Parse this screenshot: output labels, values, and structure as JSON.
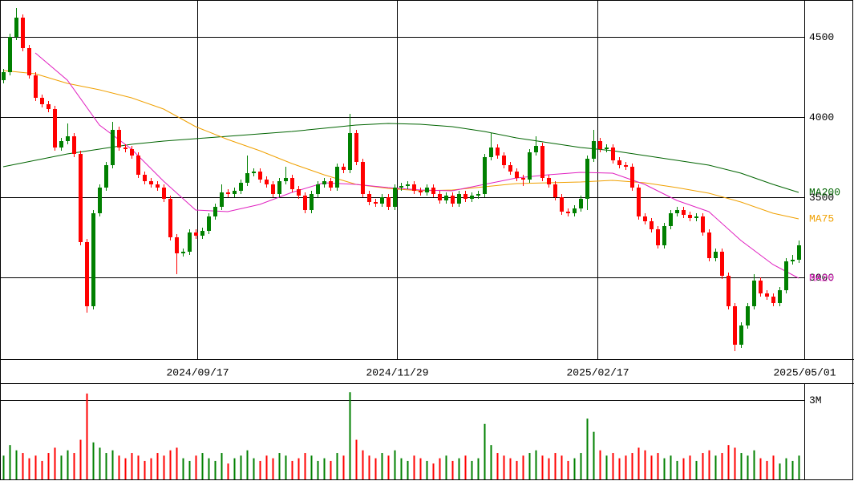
{
  "chart_data": {
    "type": "candlestick",
    "up_color": "#008000",
    "down_color": "#ff0000",
    "xlim": [
      -0.5,
      124.875
    ],
    "xticks": [
      {
        "value": 30.25,
        "label": "2024/09/17"
      },
      {
        "value": 61.375,
        "label": "2024/11/29"
      },
      {
        "value": 92.625,
        "label": "2025/02/17"
      },
      {
        "value": 124.875,
        "label": "2025/05/01"
      }
    ],
    "ylim": [
      2490,
      4730
    ],
    "yticks": [
      3000,
      3500,
      4000,
      4500
    ],
    "grid": true,
    "open": [
      4230,
      4280,
      4500,
      4620,
      4430,
      4260,
      4120,
      4080,
      4050,
      3810,
      3850,
      3880,
      3770,
      3220,
      2820,
      3400,
      3560,
      3700,
      3920,
      3810,
      3800,
      3760,
      3640,
      3600,
      3580,
      3560,
      3490,
      3250,
      3150,
      3160,
      3280,
      3260,
      3290,
      3380,
      3440,
      3530,
      3520,
      3540,
      3590,
      3650,
      3660,
      3610,
      3580,
      3520,
      3600,
      3620,
      3550,
      3510,
      3420,
      3520,
      3580,
      3600,
      3560,
      3690,
      3670,
      3900,
      3720,
      3520,
      3470,
      3460,
      3500,
      3440,
      3560,
      3570,
      3580,
      3540,
      3530,
      3560,
      3520,
      3480,
      3510,
      3460,
      3520,
      3490,
      3510,
      3520,
      3750,
      3810,
      3760,
      3700,
      3660,
      3620,
      3610,
      3780,
      3820,
      3620,
      3580,
      3500,
      3410,
      3400,
      3430,
      3490,
      3740,
      3850,
      3800,
      3810,
      3730,
      3700,
      3690,
      3560,
      3380,
      3350,
      3300,
      3200,
      3320,
      3400,
      3420,
      3390,
      3370,
      3380,
      3280,
      3120,
      3160,
      3010,
      2820,
      2580,
      2700,
      2820,
      2980,
      2900,
      2880,
      2840,
      2920,
      3100,
      3110
    ],
    "high": [
      4300,
      4520,
      4680,
      4640,
      4450,
      4280,
      4140,
      4100,
      4070,
      3870,
      3960,
      3900,
      3790,
      3240,
      3420,
      3580,
      3720,
      3970,
      3940,
      3830,
      3820,
      3780,
      3660,
      3620,
      3600,
      3580,
      3510,
      3270,
      3180,
      3300,
      3300,
      3310,
      3400,
      3460,
      3580,
      3550,
      3560,
      3610,
      3760,
      3680,
      3680,
      3630,
      3600,
      3620,
      3690,
      3640,
      3570,
      3530,
      3540,
      3600,
      3620,
      3620,
      3710,
      3710,
      4020,
      3920,
      3740,
      3540,
      3490,
      3520,
      3520,
      3580,
      3590,
      3600,
      3600,
      3560,
      3580,
      3580,
      3540,
      3530,
      3530,
      3540,
      3540,
      3530,
      3540,
      3770,
      3900,
      3830,
      3780,
      3720,
      3680,
      3640,
      3800,
      3880,
      3840,
      3640,
      3600,
      3520,
      3430,
      3450,
      3510,
      3760,
      3920,
      3870,
      3830,
      3830,
      3750,
      3720,
      3710,
      3580,
      3400,
      3370,
      3320,
      3340,
      3420,
      3440,
      3440,
      3410,
      3400,
      3400,
      3300,
      3180,
      3180,
      3030,
      2840,
      2720,
      2840,
      3020,
      3000,
      2920,
      2900,
      2940,
      3120,
      3140,
      3230
    ],
    "low": [
      4210,
      4260,
      4480,
      4410,
      4240,
      4100,
      4060,
      4030,
      3790,
      3790,
      3830,
      3750,
      3200,
      2780,
      2800,
      3380,
      3540,
      3680,
      3790,
      3780,
      3740,
      3620,
      3580,
      3560,
      3540,
      3470,
      3230,
      3020,
      3130,
      3140,
      3240,
      3240,
      3270,
      3360,
      3420,
      3500,
      3500,
      3520,
      3570,
      3630,
      3590,
      3560,
      3500,
      3500,
      3580,
      3530,
      3490,
      3400,
      3400,
      3500,
      3560,
      3540,
      3540,
      3650,
      3650,
      3700,
      3500,
      3450,
      3440,
      3440,
      3420,
      3420,
      3540,
      3550,
      3520,
      3510,
      3510,
      3500,
      3460,
      3460,
      3440,
      3440,
      3470,
      3470,
      3490,
      3500,
      3730,
      3740,
      3680,
      3640,
      3600,
      3570,
      3590,
      3760,
      3600,
      3560,
      3480,
      3390,
      3380,
      3380,
      3410,
      3420,
      3720,
      3780,
      3780,
      3710,
      3680,
      3670,
      3540,
      3360,
      3330,
      3280,
      3180,
      3180,
      3300,
      3380,
      3370,
      3350,
      3350,
      3260,
      3100,
      3100,
      2990,
      2800,
      2540,
      2560,
      2680,
      2800,
      2880,
      2860,
      2820,
      2820,
      2900,
      3080,
      3090
    ],
    "close": [
      4280,
      4500,
      4620,
      4430,
      4260,
      4120,
      4080,
      4050,
      3810,
      3850,
      3880,
      3770,
      3220,
      2820,
      3400,
      3560,
      3700,
      3920,
      3810,
      3800,
      3760,
      3640,
      3600,
      3580,
      3560,
      3490,
      3250,
      3150,
      3160,
      3280,
      3260,
      3290,
      3380,
      3440,
      3530,
      3520,
      3540,
      3590,
      3650,
      3660,
      3610,
      3580,
      3520,
      3600,
      3620,
      3550,
      3510,
      3420,
      3520,
      3580,
      3600,
      3560,
      3690,
      3670,
      3900,
      3720,
      3520,
      3470,
      3460,
      3500,
      3440,
      3560,
      3570,
      3580,
      3540,
      3530,
      3560,
      3520,
      3480,
      3510,
      3460,
      3520,
      3490,
      3510,
      3520,
      3750,
      3810,
      3760,
      3700,
      3660,
      3620,
      3610,
      3780,
      3820,
      3620,
      3580,
      3500,
      3410,
      3400,
      3430,
      3490,
      3740,
      3850,
      3800,
      3810,
      3730,
      3700,
      3690,
      3560,
      3380,
      3350,
      3300,
      3200,
      3320,
      3400,
      3420,
      3390,
      3370,
      3380,
      3280,
      3120,
      3160,
      3010,
      2820,
      2580,
      2700,
      2820,
      2980,
      2900,
      2880,
      2840,
      2920,
      3100,
      3110,
      3200
    ],
    "series": [
      {
        "name": "MA200",
        "color": "#006400",
        "x": [
          0,
          5,
          10,
          15,
          20,
          25,
          30,
          35,
          40,
          45,
          50,
          55,
          60,
          65,
          70,
          75,
          80,
          85,
          90,
          95,
          100,
          105,
          110,
          115,
          120,
          124
        ],
        "values": [
          3690,
          3730,
          3770,
          3800,
          3830,
          3850,
          3865,
          3880,
          3895,
          3910,
          3930,
          3950,
          3960,
          3955,
          3940,
          3910,
          3870,
          3840,
          3810,
          3790,
          3760,
          3730,
          3700,
          3650,
          3580,
          3530
        ]
      },
      {
        "name": "MA75",
        "color": "#f0a000",
        "x": [
          0,
          5,
          10,
          15,
          20,
          25,
          30,
          35,
          40,
          45,
          50,
          55,
          60,
          65,
          70,
          75,
          80,
          85,
          90,
          95,
          100,
          105,
          110,
          115,
          120,
          124
        ],
        "values": [
          4290,
          4270,
          4210,
          4170,
          4120,
          4050,
          3940,
          3860,
          3790,
          3710,
          3640,
          3580,
          3555,
          3540,
          3545,
          3565,
          3585,
          3590,
          3595,
          3605,
          3590,
          3560,
          3525,
          3470,
          3400,
          3365
        ]
      },
      {
        "name": "MA20",
        "color": "#e020c0",
        "x": [
          5,
          10,
          15,
          20,
          25,
          30,
          35,
          40,
          45,
          50,
          55,
          60,
          65,
          70,
          75,
          80,
          85,
          90,
          95,
          100,
          105,
          110,
          115,
          120,
          124
        ],
        "values": [
          4400,
          4230,
          3950,
          3800,
          3600,
          3420,
          3410,
          3455,
          3530,
          3590,
          3580,
          3560,
          3545,
          3540,
          3580,
          3620,
          3640,
          3655,
          3650,
          3580,
          3480,
          3410,
          3230,
          3080,
          2995
        ]
      }
    ],
    "volume": {
      "ylim": [
        0,
        3580000
      ],
      "yticks": [
        {
          "value": 3000000,
          "label": "3M"
        }
      ],
      "values": [
        900000,
        1300000,
        1100000,
        1000000,
        800000,
        900000,
        700000,
        1000000,
        1200000,
        900000,
        1100000,
        1000000,
        1500000,
        3250000,
        1400000,
        1200000,
        1000000,
        1100000,
        900000,
        800000,
        1000000,
        900000,
        700000,
        800000,
        1000000,
        900000,
        1100000,
        1200000,
        800000,
        700000,
        900000,
        1000000,
        800000,
        700000,
        1000000,
        600000,
        800000,
        900000,
        1100000,
        800000,
        700000,
        900000,
        800000,
        1000000,
        900000,
        700000,
        800000,
        1000000,
        900000,
        700000,
        800000,
        700000,
        1000000,
        900000,
        3300000,
        1500000,
        1100000,
        900000,
        800000,
        1000000,
        900000,
        1100000,
        800000,
        700000,
        900000,
        800000,
        700000,
        600000,
        800000,
        900000,
        700000,
        800000,
        900000,
        700000,
        800000,
        2100000,
        1300000,
        1000000,
        900000,
        800000,
        700000,
        900000,
        1000000,
        1100000,
        900000,
        800000,
        1000000,
        900000,
        700000,
        800000,
        1000000,
        2300000,
        1800000,
        1100000,
        900000,
        1000000,
        800000,
        900000,
        1000000,
        1200000,
        1100000,
        900000,
        1000000,
        800000,
        900000,
        700000,
        800000,
        900000,
        700000,
        1000000,
        1100000,
        900000,
        1000000,
        1300000,
        1200000,
        1000000,
        900000,
        1100000,
        800000,
        700000,
        900000,
        600000,
        800000,
        700000,
        900000
      ]
    }
  }
}
